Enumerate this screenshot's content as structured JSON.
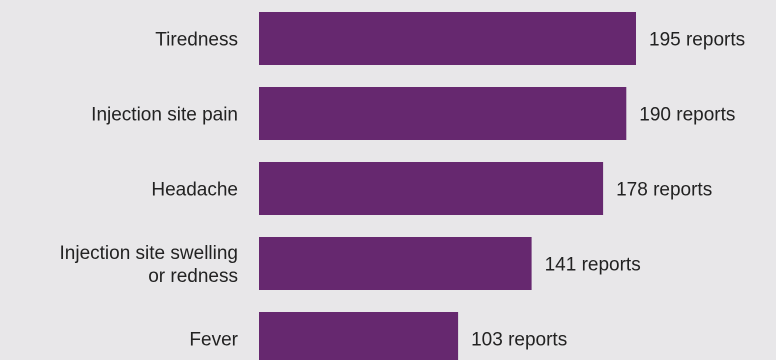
{
  "chart_data": {
    "type": "bar",
    "orientation": "horizontal",
    "categories": [
      [
        "Tiredness"
      ],
      [
        "Injection site pain"
      ],
      [
        "Headache"
      ],
      [
        "Injection site swelling",
        "or redness"
      ],
      [
        "Fever"
      ]
    ],
    "values": [
      195,
      190,
      178,
      141,
      103
    ],
    "data_labels": [
      "195 reports",
      "190 reports",
      "178 reports",
      "141 reports",
      "103 reports"
    ],
    "value_axis_min": 0,
    "grid": false,
    "legend": "none",
    "bar_color": "#66286f",
    "background_color": "#e8e7e9"
  }
}
